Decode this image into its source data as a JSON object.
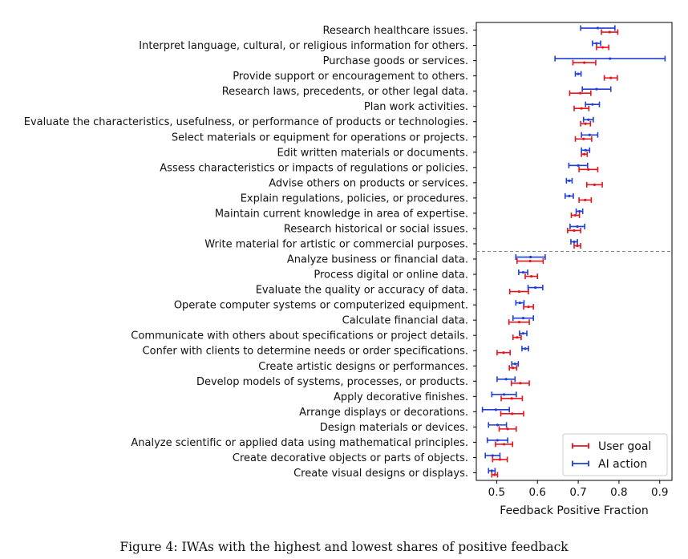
{
  "caption": "Figure 4: IWAs with the highest and lowest shares of positive feedback",
  "chart_data": {
    "type": "errorbar",
    "orientation": "horizontal",
    "xlabel": "Feedback Positive Fraction",
    "ylabel": "",
    "title": "",
    "xlim": [
      0.45,
      0.93
    ],
    "xticks": [
      0.5,
      0.6,
      0.7,
      0.8,
      0.9
    ],
    "xtick_labels": [
      "0.5",
      "0.6",
      "0.7",
      "0.8",
      "0.9"
    ],
    "grid": false,
    "legend_position": "lower-right",
    "separator_after_index": 14,
    "categories": [
      "Research healthcare issues.",
      "Interpret language, cultural, or religious information for others.",
      "Purchase goods or services.",
      "Provide support or encouragement to others.",
      "Research laws, precedents, or other legal data.",
      "Plan work activities.",
      "Evaluate the characteristics, usefulness, or performance of products or technologies.",
      "Select materials or equipment for operations or projects.",
      "Edit written materials or documents.",
      "Assess characteristics or impacts of regulations or policies.",
      "Advise others on products or services.",
      "Explain regulations, policies, or procedures.",
      "Maintain current knowledge in area of expertise.",
      "Research historical or social issues.",
      "Write material for artistic or commercial purposes.",
      "Analyze business or financial data.",
      "Process digital or online data.",
      "Evaluate the quality or accuracy of data.",
      "Operate computer systems or computerized equipment.",
      "Calculate financial data.",
      "Communicate with others about specifications or project details.",
      "Confer with clients to determine needs or order specifications.",
      "Create artistic designs or performances.",
      "Develop models of systems, processes, or products.",
      "Apply decorative finishes.",
      "Arrange displays or decorations.",
      "Design materials or devices.",
      "Analyze scientific or applied data using mathematical principles.",
      "Create decorative objects or parts of objects.",
      "Create visual designs or displays."
    ],
    "series": [
      {
        "name": "User goal",
        "color": "#e8141b",
        "values": [
          0.777,
          0.76,
          0.715,
          0.78,
          0.705,
          0.708,
          0.718,
          0.713,
          0.715,
          0.725,
          0.74,
          0.717,
          0.693,
          0.69,
          0.698,
          0.582,
          0.585,
          0.555,
          0.578,
          0.555,
          0.55,
          0.517,
          0.54,
          0.558,
          0.537,
          0.538,
          0.527,
          0.518,
          0.508,
          0.495
        ],
        "err": [
          0.02,
          0.015,
          0.028,
          0.016,
          0.026,
          0.018,
          0.012,
          0.02,
          0.007,
          0.023,
          0.019,
          0.015,
          0.01,
          0.016,
          0.008,
          0.032,
          0.015,
          0.023,
          0.012,
          0.025,
          0.01,
          0.016,
          0.009,
          0.022,
          0.026,
          0.028,
          0.021,
          0.021,
          0.018,
          0.007
        ]
      },
      {
        "name": "AI action",
        "color": "#1f3fd6",
        "values": [
          0.748,
          0.745,
          0.778,
          0.7,
          0.745,
          0.735,
          0.725,
          0.728,
          0.718,
          0.7,
          0.678,
          0.678,
          0.703,
          0.698,
          0.69,
          0.583,
          0.565,
          0.595,
          0.557,
          0.565,
          0.565,
          0.57,
          0.545,
          0.523,
          0.518,
          0.498,
          0.502,
          0.502,
          0.49,
          0.488
        ],
        "err": [
          0.042,
          0.01,
          0.135,
          0.007,
          0.035,
          0.017,
          0.012,
          0.02,
          0.01,
          0.023,
          0.007,
          0.01,
          0.008,
          0.018,
          0.008,
          0.036,
          0.011,
          0.018,
          0.01,
          0.025,
          0.009,
          0.008,
          0.008,
          0.022,
          0.03,
          0.033,
          0.022,
          0.025,
          0.018,
          0.008
        ]
      }
    ]
  }
}
